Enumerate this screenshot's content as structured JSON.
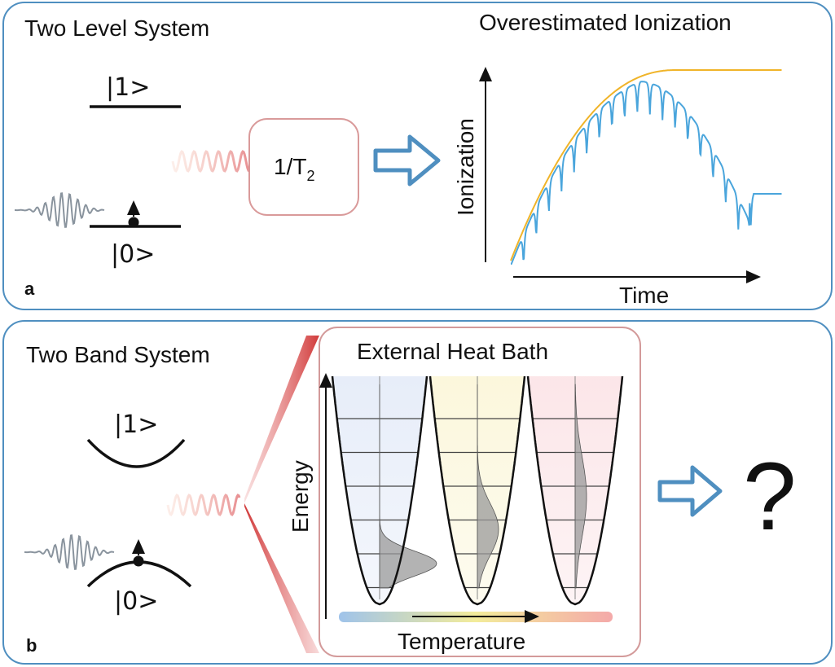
{
  "panel_a": {
    "title": "Two Level System",
    "level_upper": "|1>",
    "level_lower": "|0>",
    "dephasing_label": "1/T",
    "dephasing_subscript": "2",
    "plot_title": "Overestimated Ionization",
    "ylabel": "Ionization",
    "xlabel": "Time",
    "panel_label": "a"
  },
  "panel_b": {
    "title": "Two Band System",
    "level_upper": "|1>",
    "level_lower": "|0>",
    "bath_title": "External Heat Bath",
    "ylabel": "Energy",
    "xlabel": "Temperature",
    "outcome": "?",
    "panel_label": "b"
  },
  "colors": {
    "panel_border": "#4f8fc0",
    "bath_border": "#d39a9a",
    "orange_curve": "#f0b429",
    "blue_curve": "#4aa5dc",
    "arrow_fill": "#ffffff",
    "arrow_stroke": "#4f8fc0",
    "wave_gray": "#8a949e",
    "wave_pink": "#f2b3a8",
    "distribution_fill": "#9a9a9a"
  },
  "icons": {
    "big_arrow": "right-arrow-outline-icon",
    "pulse": "laser-pulse-icon",
    "electron": "electron-dot-icon"
  }
}
